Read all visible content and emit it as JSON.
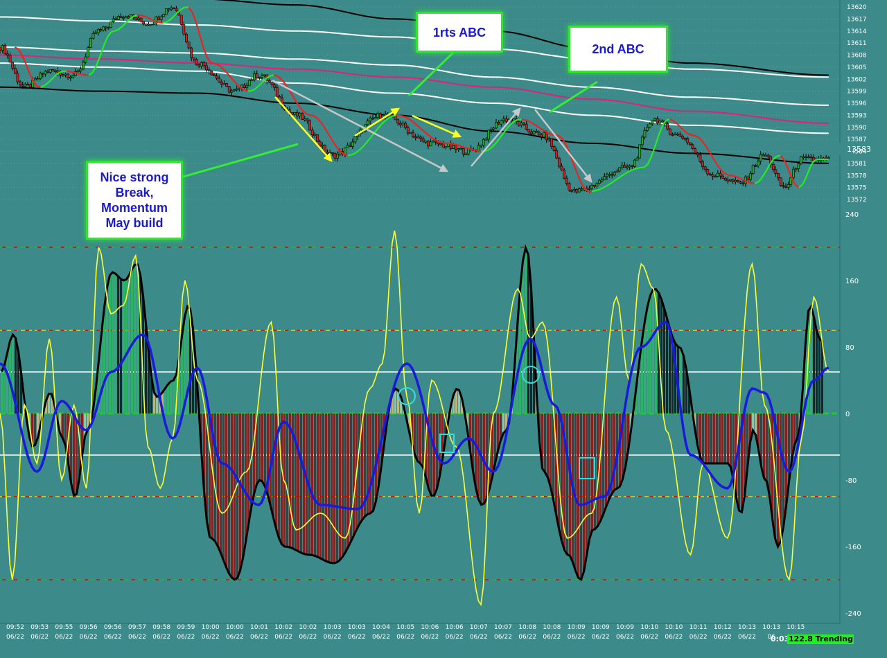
{
  "annotations": {
    "first_abc": "1rts ABC",
    "second_abc": "2nd ABC",
    "break_note": "Nice strong Break, Momentum May build"
  },
  "status": {
    "timer": "0:03",
    "value_state": "122.8 Trending"
  },
  "colors": {
    "background": "#3c8a8a",
    "bull_candle": "#22aa22",
    "bear_candle": "#cc2222",
    "fast_ma_up": "#22ee22",
    "fast_ma_down": "#ee2222",
    "slow_ma": "#dd2277",
    "envelope": "#ffffff",
    "long_ma": "#000000",
    "hist_up": "#22bb55",
    "hist_down": "#aa1111",
    "signal": "#ffff33",
    "osc_ma": "#1a1add"
  },
  "chart_data": [
    {
      "type": "candlestick",
      "title": "",
      "ylim": [
        13570,
        13622
      ],
      "y_ticks": [
        "13620",
        "13617",
        "13614",
        "13611",
        "13608",
        "13605",
        "13602",
        "13599",
        "13596",
        "13593",
        "13590",
        "13587",
        "13584",
        "13581",
        "13578",
        "13575",
        "13572"
      ],
      "last_price": "13583",
      "close_series": [
        {
          "t": 0.0,
          "v": 13610
        },
        {
          "t": 1.0,
          "v": 13600
        },
        {
          "t": 2.0,
          "v": 13604
        },
        {
          "t": 3.0,
          "v": 13603
        },
        {
          "t": 4.0,
          "v": 13614
        },
        {
          "t": 5.0,
          "v": 13618
        },
        {
          "t": 6.0,
          "v": 13616
        },
        {
          "t": 7.0,
          "v": 13620
        },
        {
          "t": 8.0,
          "v": 13606
        },
        {
          "t": 9.5,
          "v": 13599
        },
        {
          "t": 10.5,
          "v": 13603
        },
        {
          "t": 12.0,
          "v": 13593
        },
        {
          "t": 13.5,
          "v": 13583
        },
        {
          "t": 15.5,
          "v": 13593
        },
        {
          "t": 17.5,
          "v": 13586
        },
        {
          "t": 19.0,
          "v": 13584
        },
        {
          "t": 20.5,
          "v": 13592
        },
        {
          "t": 22.0,
          "v": 13588
        },
        {
          "t": 23.3,
          "v": 13574
        },
        {
          "t": 25.5,
          "v": 13580
        },
        {
          "t": 26.5,
          "v": 13592
        },
        {
          "t": 27.5,
          "v": 13588
        },
        {
          "t": 29.0,
          "v": 13578
        },
        {
          "t": 30.0,
          "v": 13576
        },
        {
          "t": 31.0,
          "v": 13583
        },
        {
          "t": 31.8,
          "v": 13575
        },
        {
          "t": 32.5,
          "v": 13582
        },
        {
          "t": 33.5,
          "v": 13582
        }
      ],
      "overlays": [
        {
          "name": "",
          "color": "#ffffff",
          "points": [
            [
              0,
              13617.5
            ],
            [
              4,
              13616.5
            ],
            [
              8,
              13615.5
            ],
            [
              12,
              13614
            ],
            [
              16,
              13612.5
            ],
            [
              20,
              13609.5
            ],
            [
              24,
              13607
            ],
            [
              28,
              13604.5
            ],
            [
              33.6,
              13602.5
            ]
          ]
        },
        {
          "name": "",
          "color": "#ffffff",
          "points": [
            [
              0,
              13610
            ],
            [
              4,
              13609
            ],
            [
              8,
              13608.5
            ],
            [
              12,
              13607
            ],
            [
              16,
              13605.5
            ],
            [
              20,
              13602.5
            ],
            [
              24,
              13600
            ],
            [
              28,
              13597.5
            ],
            [
              33.6,
              13595.5
            ]
          ]
        },
        {
          "name": "",
          "color": "#dd2277",
          "points": [
            [
              0,
              13608
            ],
            [
              4,
              13607
            ],
            [
              8,
              13606
            ],
            [
              12,
              13604.5
            ],
            [
              16,
              13602.5
            ],
            [
              20,
              13600
            ],
            [
              24,
              13597
            ],
            [
              28,
              13594
            ],
            [
              33.6,
              13591
            ]
          ]
        },
        {
          "name": "",
          "color": "#ffffff",
          "points": [
            [
              0,
              13606
            ],
            [
              4,
              13605
            ],
            [
              8,
              13604
            ],
            [
              12,
              13601
            ],
            [
              16,
              13598.5
            ],
            [
              20,
              13596
            ],
            [
              24,
              13593
            ],
            [
              28,
              13590.5
            ],
            [
              33.6,
              13588.5
            ]
          ]
        },
        {
          "name": "",
          "color": "#000000",
          "points": [
            [
              0,
              13623
            ],
            [
              4,
              13622.5
            ],
            [
              8,
              13622
            ],
            [
              12,
              13620.5
            ],
            [
              16,
              13617
            ],
            [
              20,
              13614
            ],
            [
              24,
              13609.5
            ],
            [
              28,
              13606
            ],
            [
              33.6,
              13603
            ]
          ]
        },
        {
          "name": "",
          "color": "#000000",
          "points": [
            [
              0,
              13600
            ],
            [
              4,
              13599
            ],
            [
              8,
              13598.5
            ],
            [
              12,
              13596
            ],
            [
              16,
              13593
            ],
            [
              20,
              13589
            ],
            [
              24,
              13586
            ],
            [
              28,
              13583.5
            ],
            [
              33.6,
              13581
            ]
          ]
        }
      ]
    },
    {
      "type": "area",
      "title": "",
      "ylim": [
        -255,
        250
      ],
      "y_ticks": [
        "240",
        "160",
        "80",
        "0",
        "-80",
        "-160",
        "-240"
      ],
      "levels": [
        200,
        100,
        50,
        -50,
        -100,
        -200
      ],
      "histogram": [
        {
          "t": 0.0,
          "v": 50
        },
        {
          "t": 0.5,
          "v": 95
        },
        {
          "t": 1.3,
          "v": -40
        },
        {
          "t": 2.0,
          "v": 25
        },
        {
          "t": 2.5,
          "v": -30
        },
        {
          "t": 3.0,
          "v": -100
        },
        {
          "t": 3.5,
          "v": -20
        },
        {
          "t": 4.5,
          "v": 170
        },
        {
          "t": 5.0,
          "v": 160
        },
        {
          "t": 5.5,
          "v": 180
        },
        {
          "t": 6.3,
          "v": 20
        },
        {
          "t": 7.0,
          "v": 40
        },
        {
          "t": 7.6,
          "v": 130
        },
        {
          "t": 8.5,
          "v": -150
        },
        {
          "t": 9.5,
          "v": -200
        },
        {
          "t": 10.5,
          "v": -80
        },
        {
          "t": 11.5,
          "v": -160
        },
        {
          "t": 12.5,
          "v": -170
        },
        {
          "t": 13.5,
          "v": -180
        },
        {
          "t": 15.0,
          "v": -120
        },
        {
          "t": 16.0,
          "v": 30
        },
        {
          "t": 17.0,
          "v": -60
        },
        {
          "t": 17.5,
          "v": -100
        },
        {
          "t": 18.5,
          "v": 30
        },
        {
          "t": 19.5,
          "v": -110
        },
        {
          "t": 20.5,
          "v": -20
        },
        {
          "t": 21.3,
          "v": 200
        },
        {
          "t": 22.0,
          "v": -70
        },
        {
          "t": 23.0,
          "v": -170
        },
        {
          "t": 23.5,
          "v": -200
        },
        {
          "t": 24.0,
          "v": -140
        },
        {
          "t": 25.0,
          "v": -90
        },
        {
          "t": 26.5,
          "v": 150
        },
        {
          "t": 27.5,
          "v": 80
        },
        {
          "t": 28.5,
          "v": -60
        },
        {
          "t": 29.5,
          "v": -60
        },
        {
          "t": 30.0,
          "v": -120
        },
        {
          "t": 30.5,
          "v": -20
        },
        {
          "t": 31.0,
          "v": -80
        },
        {
          "t": 31.5,
          "v": -160
        },
        {
          "t": 32.3,
          "v": -30
        },
        {
          "t": 32.8,
          "v": 130
        },
        {
          "t": 33.2,
          "v": 90
        },
        {
          "t": 33.6,
          "v": 70
        }
      ],
      "signal": [
        {
          "t": 0.0,
          "v": 0
        },
        {
          "t": 0.5,
          "v": -200
        },
        {
          "t": 1.0,
          "v": 10
        },
        {
          "t": 1.5,
          "v": -60
        },
        {
          "t": 2.0,
          "v": 90
        },
        {
          "t": 2.5,
          "v": -80
        },
        {
          "t": 3.0,
          "v": 10
        },
        {
          "t": 3.5,
          "v": -90
        },
        {
          "t": 4.0,
          "v": 200
        },
        {
          "t": 4.5,
          "v": 120
        },
        {
          "t": 5.0,
          "v": 130
        },
        {
          "t": 5.5,
          "v": 190
        },
        {
          "t": 6.0,
          "v": -40
        },
        {
          "t": 6.5,
          "v": -90
        },
        {
          "t": 7.0,
          "v": -30
        },
        {
          "t": 7.5,
          "v": 160
        },
        {
          "t": 8.0,
          "v": 40
        },
        {
          "t": 9.0,
          "v": -120
        },
        {
          "t": 10.0,
          "v": -70
        },
        {
          "t": 11.0,
          "v": 110
        },
        {
          "t": 11.5,
          "v": -80
        },
        {
          "t": 12.0,
          "v": -140
        },
        {
          "t": 13.0,
          "v": -120
        },
        {
          "t": 14.0,
          "v": -150
        },
        {
          "t": 15.0,
          "v": 30
        },
        {
          "t": 15.5,
          "v": 60
        },
        {
          "t": 16.0,
          "v": 220
        },
        {
          "t": 16.5,
          "v": 20
        },
        {
          "t": 17.0,
          "v": -120
        },
        {
          "t": 17.5,
          "v": 40
        },
        {
          "t": 18.5,
          "v": -40
        },
        {
          "t": 19.5,
          "v": -230
        },
        {
          "t": 20.0,
          "v": 0
        },
        {
          "t": 21.0,
          "v": 150
        },
        {
          "t": 21.5,
          "v": 90
        },
        {
          "t": 22.0,
          "v": 110
        },
        {
          "t": 23.0,
          "v": -150
        },
        {
          "t": 24.0,
          "v": -120
        },
        {
          "t": 25.0,
          "v": 140
        },
        {
          "t": 25.5,
          "v": 40
        },
        {
          "t": 26.0,
          "v": 180
        },
        {
          "t": 26.5,
          "v": 150
        },
        {
          "t": 27.0,
          "v": -20
        },
        {
          "t": 28.0,
          "v": -170
        },
        {
          "t": 28.5,
          "v": -60
        },
        {
          "t": 29.5,
          "v": -150
        },
        {
          "t": 30.5,
          "v": 180
        },
        {
          "t": 31.0,
          "v": 10
        },
        {
          "t": 32.0,
          "v": -200
        },
        {
          "t": 32.5,
          "v": -30
        },
        {
          "t": 33.0,
          "v": 140
        },
        {
          "t": 33.6,
          "v": 50
        }
      ],
      "moving_average": [
        {
          "t": 0.0,
          "v": 60
        },
        {
          "t": 1.5,
          "v": -70
        },
        {
          "t": 2.5,
          "v": 15
        },
        {
          "t": 3.5,
          "v": -20
        },
        {
          "t": 4.5,
          "v": 50
        },
        {
          "t": 5.8,
          "v": 95
        },
        {
          "t": 7.0,
          "v": -30
        },
        {
          "t": 8.0,
          "v": 55
        },
        {
          "t": 9.0,
          "v": -60
        },
        {
          "t": 10.5,
          "v": -110
        },
        {
          "t": 11.5,
          "v": -10
        },
        {
          "t": 13.0,
          "v": -110
        },
        {
          "t": 14.5,
          "v": -115
        },
        {
          "t": 16.5,
          "v": 60
        },
        {
          "t": 18.0,
          "v": -60
        },
        {
          "t": 19.0,
          "v": -30
        },
        {
          "t": 20.0,
          "v": -70
        },
        {
          "t": 21.5,
          "v": 90
        },
        {
          "t": 22.5,
          "v": 10
        },
        {
          "t": 23.5,
          "v": -110
        },
        {
          "t": 24.5,
          "v": -100
        },
        {
          "t": 26.0,
          "v": 80
        },
        {
          "t": 27.0,
          "v": 110
        },
        {
          "t": 28.0,
          "v": -50
        },
        {
          "t": 29.5,
          "v": -90
        },
        {
          "t": 30.5,
          "v": 30
        },
        {
          "t": 31.0,
          "v": 25
        },
        {
          "t": 32.0,
          "v": -70
        },
        {
          "t": 33.0,
          "v": 40
        },
        {
          "t": 33.6,
          "v": 55
        }
      ]
    }
  ],
  "time_axis": {
    "times": [
      "09:52",
      "09:53",
      "09:55",
      "09:56",
      "09:56",
      "09:57",
      "09:58",
      "09:59",
      "10:00",
      "10:00",
      "10:01",
      "10:02",
      "10:02",
      "10:03",
      "10:03",
      "10:04",
      "10:05",
      "10:06",
      "10:06",
      "10:07",
      "10:07",
      "10:08",
      "10:08",
      "10:09",
      "10:09",
      "10:09",
      "10:10",
      "10:10",
      "10:11",
      "10:12",
      "10:13",
      "10:13",
      "10:15"
    ],
    "date": "06/22",
    "last_date": "06"
  }
}
